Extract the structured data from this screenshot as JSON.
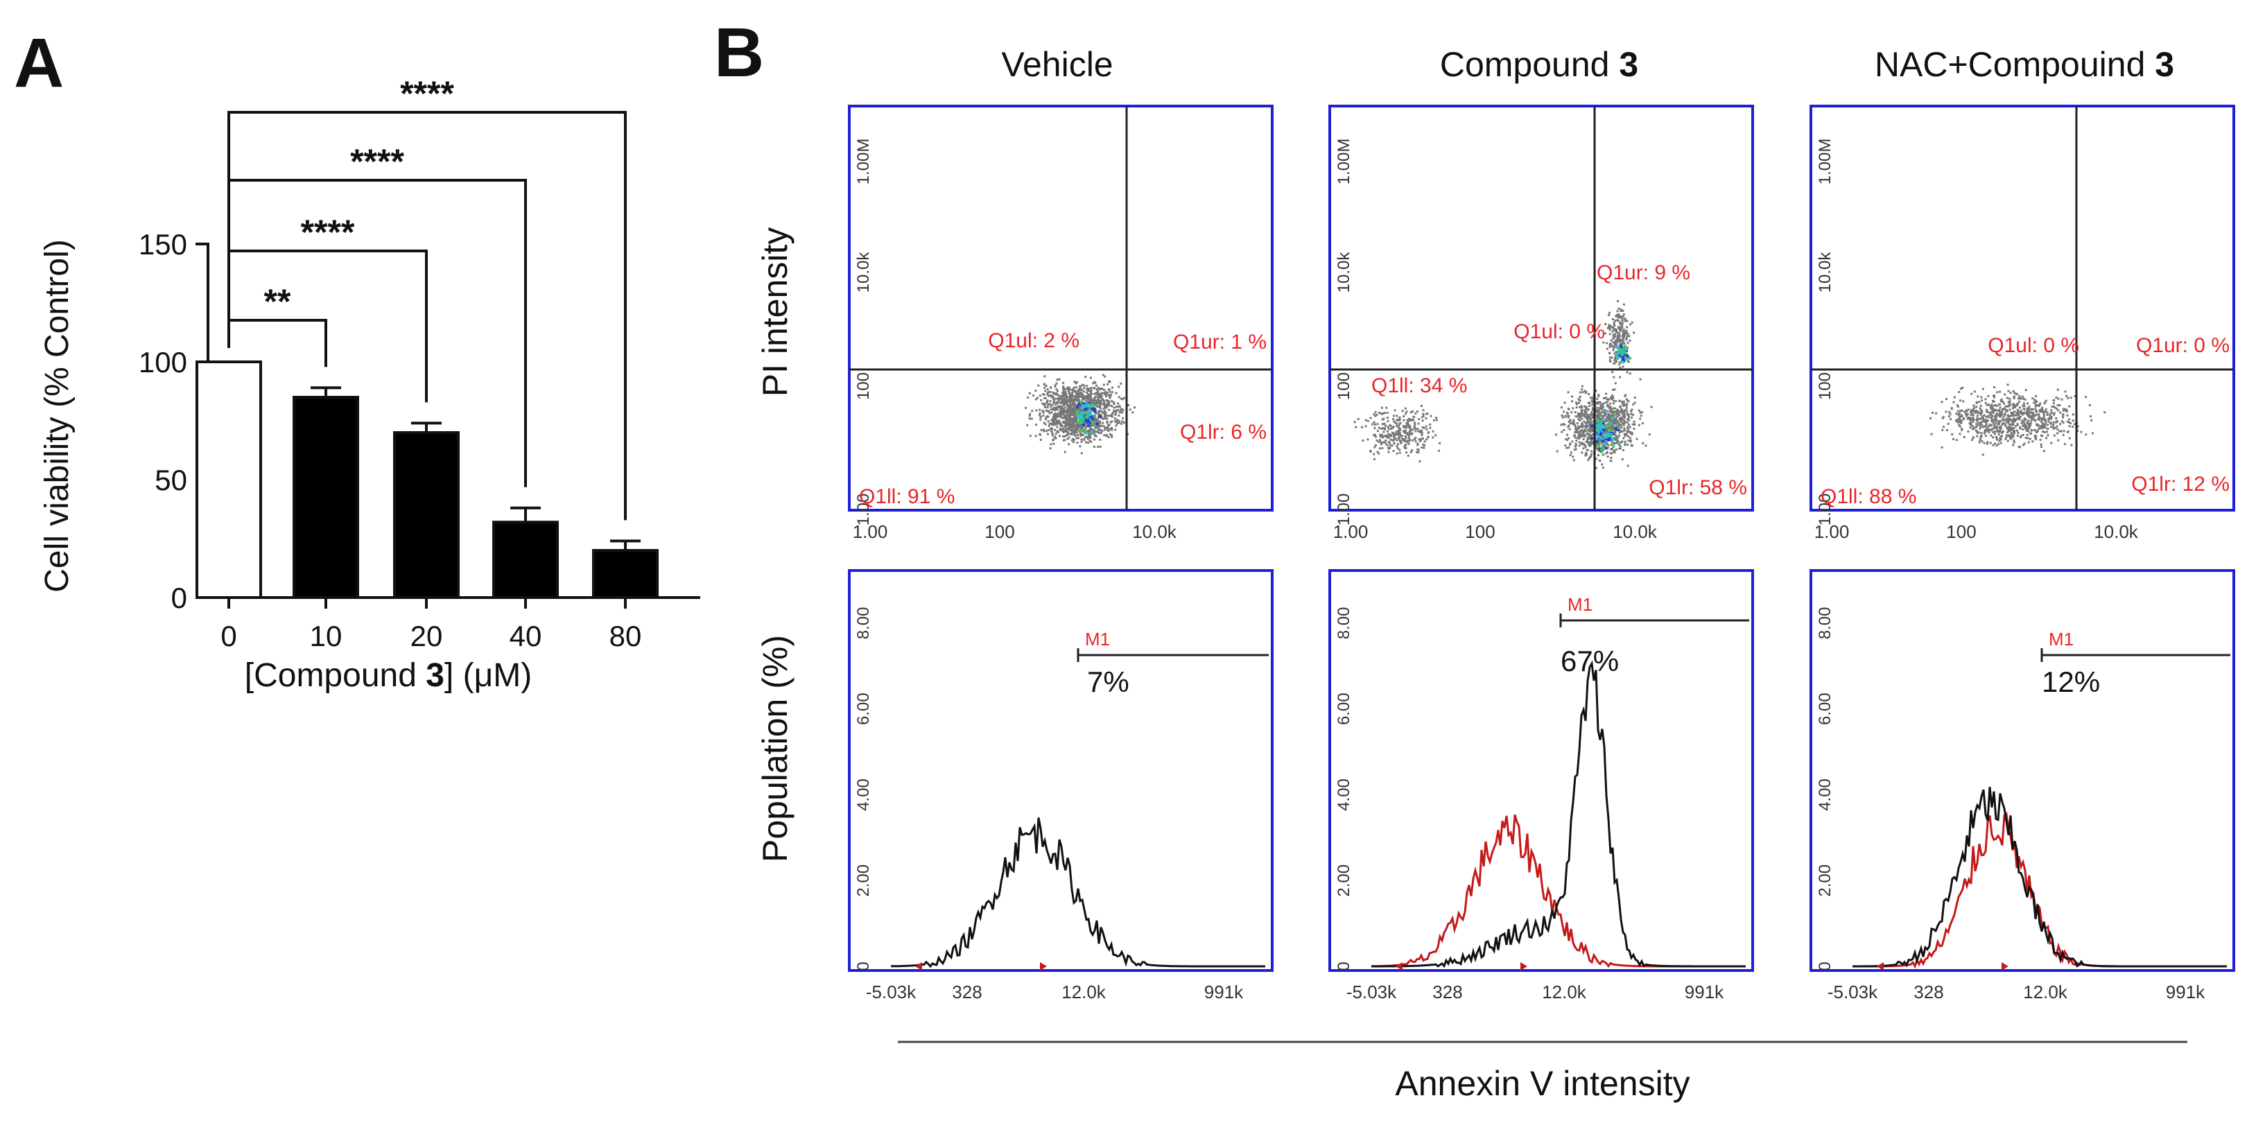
{
  "panels": {
    "a": "A",
    "b": "B"
  },
  "colors": {
    "frame": "#1f1fd6",
    "annot": "#e8262a",
    "red_curve": "#c41a1a",
    "ink": "#111111",
    "density": "#2ec0e0"
  },
  "chart_data": [
    {
      "type": "bar",
      "panel": "A",
      "categories": [
        "0",
        "10",
        "20",
        "40",
        "80"
      ],
      "values": [
        100,
        85,
        70,
        32,
        20
      ],
      "errors": [
        0,
        4,
        4,
        6,
        4
      ],
      "fills": [
        "#ffffff",
        "#000000",
        "#000000",
        "#000000",
        "#000000"
      ],
      "ylabel": "Cell viability (% Control)",
      "xlabel_parts": [
        "[Compound ",
        "3",
        "] (μM)"
      ],
      "yticks": [
        0,
        50,
        100,
        150
      ],
      "ylim": [
        0,
        150
      ],
      "significance": [
        {
          "compare": [
            "0",
            "10"
          ],
          "label": "**"
        },
        {
          "compare": [
            "0",
            "20"
          ],
          "label": "****"
        },
        {
          "compare": [
            "0",
            "40"
          ],
          "label": "****"
        },
        {
          "compare": [
            "0",
            "80"
          ],
          "label": "****"
        }
      ]
    },
    {
      "type": "scatter",
      "panel": "B",
      "subtype": "flow-cytometry-dot-plot",
      "ylabel": "PI intensity",
      "x_ticks": [
        "1.00",
        "100",
        "10.0k"
      ],
      "y_ticks": [
        "1.00",
        "100",
        "10.0k",
        "1.00M"
      ],
      "conditions": [
        {
          "name": "Vehicle",
          "quadrants": {
            "ul": "Q1ul: 2 %",
            "ur": "Q1ur: 1 %",
            "ll": "Q1ll: 91 %",
            "lr": "Q1lr: 6 %"
          }
        },
        {
          "name_parts": [
            "Compound ",
            "3"
          ],
          "quadrants": {
            "ul": "Q1ul: 0 %",
            "ur": "Q1ur: 9 %",
            "ll": "Q1ll: 34 %",
            "lr": "Q1lr: 58 %"
          }
        },
        {
          "name_parts": [
            "NAC+Compouind ",
            "3"
          ],
          "quadrants": {
            "ul": "Q1ul: 0 %",
            "ur": "Q1ur: 0 %",
            "ll": "Q1ll: 88 %",
            "lr": "Q1lr: 12 %"
          }
        }
      ]
    },
    {
      "type": "line",
      "panel": "B",
      "subtype": "histogram",
      "ylabel": "Population (%)",
      "xlabel": "Annexin V intensity",
      "x_ticks": [
        "-5.03k",
        "328",
        "12.0k",
        "991k"
      ],
      "y_ticks": [
        "0",
        "2.00",
        "4.00",
        "6.00",
        "8.00"
      ],
      "ylim": [
        0,
        9
      ],
      "gate_label": "M1",
      "conditions": [
        {
          "gate_percent": "7%",
          "black_peak": 3.1,
          "red_peak": null
        },
        {
          "gate_percent": "67%",
          "black_peak": 6.2,
          "red_peak": 3.1
        },
        {
          "gate_percent": "12%",
          "black_peak": 3.8,
          "red_peak": 3.3
        }
      ]
    }
  ]
}
